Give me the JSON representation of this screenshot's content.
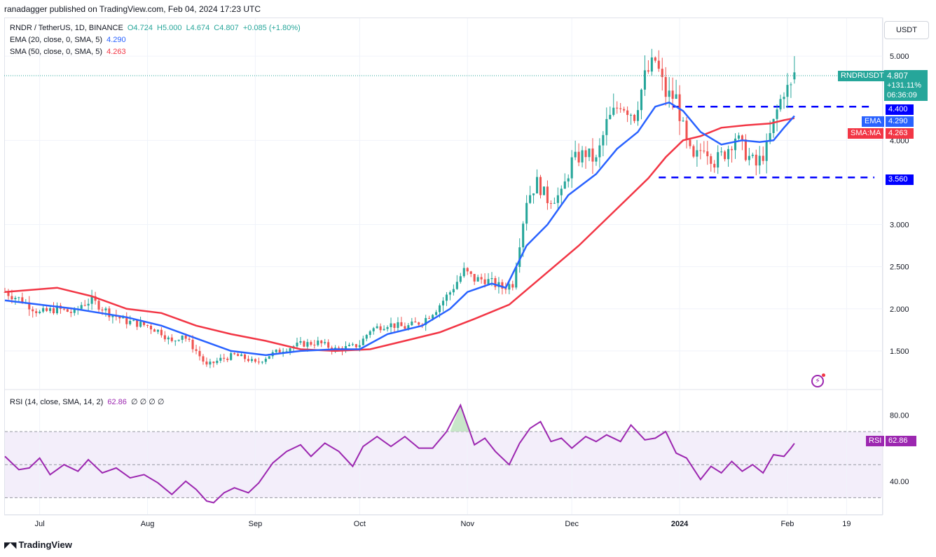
{
  "caption": "ranadagger published on TradingView.com, Feb 04, 2024 17:23 UTC",
  "currency_button": "USDT",
  "legend": {
    "main": {
      "label": "RNDR / TetherUS, 1D, BINANCE",
      "o": "O4.724",
      "h": "H5.000",
      "l": "L4.674",
      "c": "C4.807",
      "chg": "+0.085 (+1.80%)"
    },
    "ema": {
      "label": "EMA (20, close, 0, SMA, 5)",
      "value": "4.290"
    },
    "sma": {
      "label": "SMA (50, close, 0, SMA, 5)",
      "value": "4.263"
    },
    "rsi": {
      "label": "RSI (14, close, SMA, 14, 2)",
      "value": "62.86",
      "extra": "∅ ∅ ∅ ∅"
    }
  },
  "badges": {
    "symbol": "RNDRUSDT",
    "price": "4.807",
    "pct": "+131.11%",
    "countdown": "06:36:09",
    "level_high": "4.400",
    "ema_name": "EMA",
    "ema_value": "4.290",
    "sma_name": "SMA:MA",
    "sma_value": "4.263",
    "level_low": "3.560",
    "rsi_name": "RSI",
    "rsi_value": "62.86"
  },
  "footer": "TradingView",
  "colors": {
    "up": "#26a69a",
    "down": "#ef5350",
    "ema": "#2962ff",
    "sma": "#f23645",
    "rsi": "#9c27b0",
    "levels": "#0000ff",
    "rsi_band": "#f3eefa"
  },
  "chart_data": {
    "type": "candlestick",
    "price_axis": {
      "ticks": [
        "5.000",
        "4.000",
        "3.000",
        "2.500",
        "2.000",
        "1.500"
      ],
      "tick_values": [
        5.0,
        4.0,
        3.0,
        2.5,
        2.0,
        1.5
      ],
      "range": [
        1.05,
        5.45
      ]
    },
    "rsi_axis": {
      "ticks": [
        "80.00",
        "40.00"
      ],
      "tick_values": [
        80,
        40
      ],
      "range": [
        20,
        95
      ],
      "bands": [
        70,
        50,
        30
      ]
    },
    "time_axis": {
      "labels": [
        "Jul",
        "Aug",
        "Sep",
        "Oct",
        "Nov",
        "Dec",
        "2024",
        "Feb",
        "19"
      ],
      "label_days": [
        0,
        31,
        62,
        92,
        123,
        153,
        184,
        215,
        232
      ],
      "range_days": [
        -10,
        242
      ]
    },
    "horizontal_levels": [
      4.4,
      3.56
    ],
    "waypoints_close": [
      [
        -10,
        2.2
      ],
      [
        -5,
        2.1
      ],
      [
        0,
        1.95
      ],
      [
        5,
        2.0
      ],
      [
        10,
        1.95
      ],
      [
        12,
        2.05
      ],
      [
        15,
        2.1
      ],
      [
        20,
        1.95
      ],
      [
        25,
        1.85
      ],
      [
        31,
        1.8
      ],
      [
        35,
        1.72
      ],
      [
        38,
        1.6
      ],
      [
        41,
        1.7
      ],
      [
        45,
        1.5
      ],
      [
        48,
        1.32
      ],
      [
        52,
        1.4
      ],
      [
        56,
        1.45
      ],
      [
        60,
        1.4
      ],
      [
        62,
        1.35
      ],
      [
        66,
        1.45
      ],
      [
        70,
        1.52
      ],
      [
        75,
        1.58
      ],
      [
        80,
        1.6
      ],
      [
        85,
        1.52
      ],
      [
        90,
        1.55
      ],
      [
        92,
        1.58
      ],
      [
        95,
        1.75
      ],
      [
        100,
        1.82
      ],
      [
        105,
        1.78
      ],
      [
        110,
        1.85
      ],
      [
        114,
        2.0
      ],
      [
        118,
        2.2
      ],
      [
        122,
        2.45
      ],
      [
        125,
        2.35
      ],
      [
        128,
        2.35
      ],
      [
        133,
        2.25
      ],
      [
        136,
        2.3
      ],
      [
        140,
        3.3
      ],
      [
        143,
        3.5
      ],
      [
        146,
        3.3
      ],
      [
        150,
        3.35
      ],
      [
        153,
        3.75
      ],
      [
        157,
        3.85
      ],
      [
        160,
        3.75
      ],
      [
        163,
        4.2
      ],
      [
        167,
        4.45
      ],
      [
        171,
        4.3
      ],
      [
        174,
        4.75
      ],
      [
        177,
        4.95
      ],
      [
        180,
        4.55
      ],
      [
        183,
        4.5
      ],
      [
        186,
        3.95
      ],
      [
        188,
        3.75
      ],
      [
        191,
        3.95
      ],
      [
        194,
        3.75
      ],
      [
        197,
        3.85
      ],
      [
        200,
        4.05
      ],
      [
        203,
        3.85
      ],
      [
        206,
        3.7
      ],
      [
        209,
        3.9
      ],
      [
        212,
        4.35
      ],
      [
        214,
        4.6
      ],
      [
        216,
        4.62
      ],
      [
        217,
        4.807
      ]
    ],
    "ema_points": [
      [
        -10,
        2.1
      ],
      [
        10,
        2.0
      ],
      [
        25,
        1.9
      ],
      [
        35,
        1.8
      ],
      [
        45,
        1.65
      ],
      [
        55,
        1.5
      ],
      [
        65,
        1.45
      ],
      [
        75,
        1.5
      ],
      [
        85,
        1.52
      ],
      [
        92,
        1.52
      ],
      [
        100,
        1.7
      ],
      [
        110,
        1.8
      ],
      [
        118,
        2.0
      ],
      [
        123,
        2.2
      ],
      [
        130,
        2.3
      ],
      [
        134,
        2.25
      ],
      [
        140,
        2.75
      ],
      [
        146,
        3.0
      ],
      [
        152,
        3.35
      ],
      [
        160,
        3.6
      ],
      [
        166,
        3.9
      ],
      [
        172,
        4.1
      ],
      [
        177,
        4.4
      ],
      [
        181,
        4.45
      ],
      [
        185,
        4.35
      ],
      [
        190,
        4.1
      ],
      [
        196,
        3.95
      ],
      [
        202,
        4.0
      ],
      [
        207,
        3.98
      ],
      [
        211,
        4.0
      ],
      [
        214,
        4.15
      ],
      [
        217,
        4.29
      ]
    ],
    "sma_points": [
      [
        -10,
        2.2
      ],
      [
        5,
        2.25
      ],
      [
        15,
        2.15
      ],
      [
        25,
        2.0
      ],
      [
        35,
        1.95
      ],
      [
        45,
        1.8
      ],
      [
        55,
        1.7
      ],
      [
        65,
        1.62
      ],
      [
        75,
        1.52
      ],
      [
        85,
        1.5
      ],
      [
        95,
        1.52
      ],
      [
        105,
        1.62
      ],
      [
        115,
        1.72
      ],
      [
        125,
        1.88
      ],
      [
        135,
        2.05
      ],
      [
        145,
        2.4
      ],
      [
        155,
        2.75
      ],
      [
        165,
        3.15
      ],
      [
        175,
        3.55
      ],
      [
        180,
        3.8
      ],
      [
        185,
        4.0
      ],
      [
        190,
        4.05
      ],
      [
        196,
        4.15
      ],
      [
        203,
        4.18
      ],
      [
        210,
        4.2
      ],
      [
        214,
        4.24
      ],
      [
        217,
        4.263
      ]
    ],
    "rsi_points": [
      [
        -10,
        55
      ],
      [
        -6,
        47
      ],
      [
        -3,
        48
      ],
      [
        0,
        54
      ],
      [
        3,
        44
      ],
      [
        7,
        50
      ],
      [
        11,
        46
      ],
      [
        14,
        53
      ],
      [
        18,
        45
      ],
      [
        22,
        48
      ],
      [
        26,
        42
      ],
      [
        30,
        44
      ],
      [
        34,
        39
      ],
      [
        38,
        32
      ],
      [
        42,
        40
      ],
      [
        45,
        35
      ],
      [
        48,
        28
      ],
      [
        50,
        27
      ],
      [
        53,
        33
      ],
      [
        56,
        36
      ],
      [
        60,
        33
      ],
      [
        63,
        39
      ],
      [
        67,
        51
      ],
      [
        71,
        58
      ],
      [
        75,
        62
      ],
      [
        78,
        55
      ],
      [
        82,
        63
      ],
      [
        86,
        58
      ],
      [
        90,
        49
      ],
      [
        93,
        61
      ],
      [
        97,
        67
      ],
      [
        101,
        61
      ],
      [
        105,
        67
      ],
      [
        109,
        60
      ],
      [
        113,
        60
      ],
      [
        117,
        70
      ],
      [
        121,
        86
      ],
      [
        125,
        62
      ],
      [
        128,
        66
      ],
      [
        131,
        58
      ],
      [
        135,
        50
      ],
      [
        138,
        63
      ],
      [
        141,
        72
      ],
      [
        144,
        76
      ],
      [
        147,
        64
      ],
      [
        150,
        66
      ],
      [
        153,
        60
      ],
      [
        157,
        67
      ],
      [
        160,
        64
      ],
      [
        163,
        68
      ],
      [
        167,
        64
      ],
      [
        170,
        74
      ],
      [
        174,
        65
      ],
      [
        177,
        66
      ],
      [
        180,
        70
      ],
      [
        183,
        57
      ],
      [
        186,
        54
      ],
      [
        190,
        41
      ],
      [
        193,
        49
      ],
      [
        196,
        45
      ],
      [
        199,
        52
      ],
      [
        202,
        46
      ],
      [
        205,
        50
      ],
      [
        208,
        45
      ],
      [
        211,
        56
      ],
      [
        214,
        55
      ],
      [
        216,
        60
      ],
      [
        217,
        62.86
      ]
    ]
  }
}
